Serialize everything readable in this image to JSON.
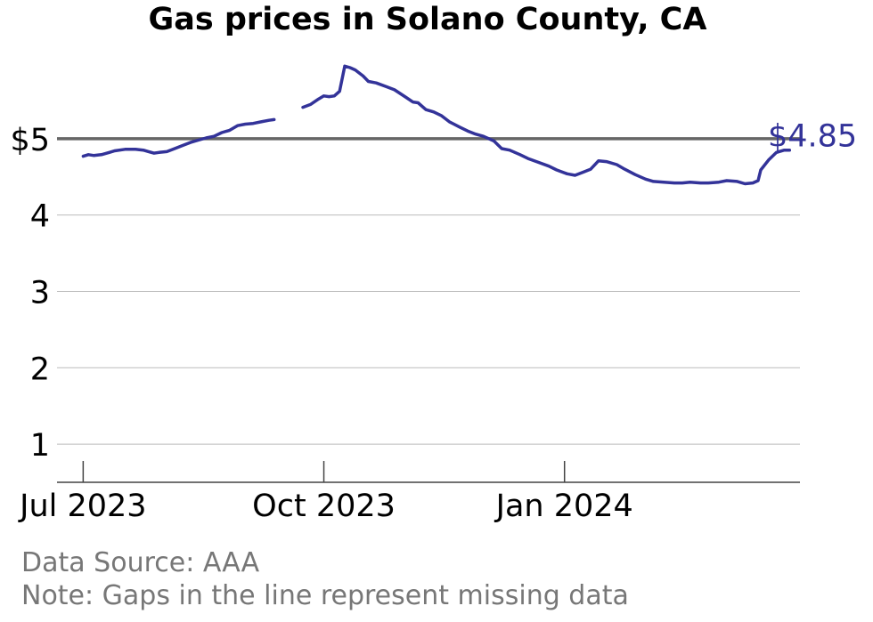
{
  "title": "Gas prices in Solano County, CA",
  "source": "Data Source: AAA",
  "note": "Note: Gaps in the line represent missing data",
  "chart_data": {
    "type": "line",
    "title": "Gas prices in Solano County, CA",
    "xlabel": "",
    "ylabel": "",
    "ylim": [
      0.5,
      6.0
    ],
    "y_ticks": [
      {
        "value": 1,
        "label": "1"
      },
      {
        "value": 2,
        "label": "2"
      },
      {
        "value": 3,
        "label": "3"
      },
      {
        "value": 4,
        "label": "4"
      },
      {
        "value": 5,
        "label": "$5"
      }
    ],
    "x_ticks": [
      {
        "date": "2023-07-01",
        "label": "Jul 2023"
      },
      {
        "date": "2023-10-01",
        "label": "Oct 2023"
      },
      {
        "date": "2024-01-01",
        "label": "Jan 2024"
      }
    ],
    "xlim": [
      "2023-06-21",
      "2024-03-31"
    ],
    "reference_line": {
      "value": 5
    },
    "grid": true,
    "last_value_label": "$4.85",
    "colors": {
      "line": "#333399",
      "reference": "#666666",
      "grid": "#bbbbbb",
      "axis": "#444444"
    },
    "series": [
      {
        "points": [
          [
            "2023-07-01",
            4.77
          ],
          [
            "2023-07-03",
            4.79
          ],
          [
            "2023-07-05",
            4.78
          ],
          [
            "2023-07-08",
            4.79
          ],
          [
            "2023-07-11",
            4.82
          ],
          [
            "2023-07-13",
            4.84
          ],
          [
            "2023-07-17",
            4.86
          ],
          [
            "2023-07-21",
            4.86
          ],
          [
            "2023-07-24",
            4.85
          ],
          [
            "2023-07-26",
            4.83
          ],
          [
            "2023-07-28",
            4.81
          ],
          [
            "2023-07-30",
            4.82
          ],
          [
            "2023-08-02",
            4.83
          ],
          [
            "2023-08-05",
            4.87
          ],
          [
            "2023-08-08",
            4.91
          ],
          [
            "2023-08-11",
            4.95
          ],
          [
            "2023-08-14",
            4.98
          ],
          [
            "2023-08-17",
            5.01
          ],
          [
            "2023-08-20",
            5.03
          ],
          [
            "2023-08-23",
            5.08
          ],
          [
            "2023-08-26",
            5.11
          ],
          [
            "2023-08-29",
            5.17
          ],
          [
            "2023-09-01",
            5.19
          ],
          [
            "2023-09-04",
            5.2
          ],
          [
            "2023-09-07",
            5.22
          ],
          [
            "2023-09-10",
            5.24
          ],
          [
            "2023-09-12",
            5.25
          ]
        ]
      },
      {
        "points": [
          [
            "2023-09-23",
            5.41
          ],
          [
            "2023-09-26",
            5.45
          ],
          [
            "2023-09-29",
            5.52
          ],
          [
            "2023-10-01",
            5.56
          ],
          [
            "2023-10-03",
            5.55
          ],
          [
            "2023-10-05",
            5.56
          ],
          [
            "2023-10-07",
            5.62
          ],
          [
            "2023-10-09",
            5.95
          ],
          [
            "2023-10-11",
            5.93
          ],
          [
            "2023-10-13",
            5.9
          ],
          [
            "2023-10-16",
            5.82
          ],
          [
            "2023-10-18",
            5.75
          ],
          [
            "2023-10-21",
            5.73
          ],
          [
            "2023-10-25",
            5.68
          ],
          [
            "2023-10-28",
            5.64
          ],
          [
            "2023-11-01",
            5.55
          ],
          [
            "2023-11-04",
            5.48
          ],
          [
            "2023-11-06",
            5.47
          ],
          [
            "2023-11-09",
            5.38
          ],
          [
            "2023-11-12",
            5.35
          ],
          [
            "2023-11-15",
            5.3
          ],
          [
            "2023-11-18",
            5.22
          ],
          [
            "2023-11-22",
            5.15
          ],
          [
            "2023-11-25",
            5.1
          ],
          [
            "2023-11-28",
            5.06
          ],
          [
            "2023-12-01",
            5.03
          ],
          [
            "2023-12-05",
            4.97
          ],
          [
            "2023-12-08",
            4.87
          ],
          [
            "2023-12-11",
            4.85
          ],
          [
            "2023-12-15",
            4.79
          ],
          [
            "2023-12-18",
            4.74
          ],
          [
            "2023-12-22",
            4.69
          ],
          [
            "2023-12-26",
            4.64
          ],
          [
            "2023-12-29",
            4.59
          ],
          [
            "2024-01-02",
            4.54
          ],
          [
            "2024-01-05",
            4.52
          ],
          [
            "2024-01-08",
            4.56
          ],
          [
            "2024-01-11",
            4.6
          ],
          [
            "2024-01-14",
            4.71
          ],
          [
            "2024-01-17",
            4.7
          ],
          [
            "2024-01-21",
            4.66
          ],
          [
            "2024-01-24",
            4.6
          ],
          [
            "2024-01-28",
            4.53
          ],
          [
            "2024-02-01",
            4.47
          ],
          [
            "2024-02-04",
            4.44
          ],
          [
            "2024-02-08",
            4.43
          ],
          [
            "2024-02-12",
            4.42
          ],
          [
            "2024-02-15",
            4.42
          ],
          [
            "2024-02-18",
            4.43
          ],
          [
            "2024-02-22",
            4.42
          ],
          [
            "2024-02-25",
            4.42
          ],
          [
            "2024-02-29",
            4.43
          ],
          [
            "2024-03-03",
            4.45
          ],
          [
            "2024-03-07",
            4.44
          ],
          [
            "2024-03-10",
            4.41
          ],
          [
            "2024-03-13",
            4.42
          ],
          [
            "2024-03-15",
            4.45
          ],
          [
            "2024-03-16",
            4.59
          ],
          [
            "2024-03-19",
            4.72
          ],
          [
            "2024-03-22",
            4.82
          ],
          [
            "2024-03-25",
            4.85
          ],
          [
            "2024-03-27",
            4.85
          ]
        ]
      }
    ]
  }
}
